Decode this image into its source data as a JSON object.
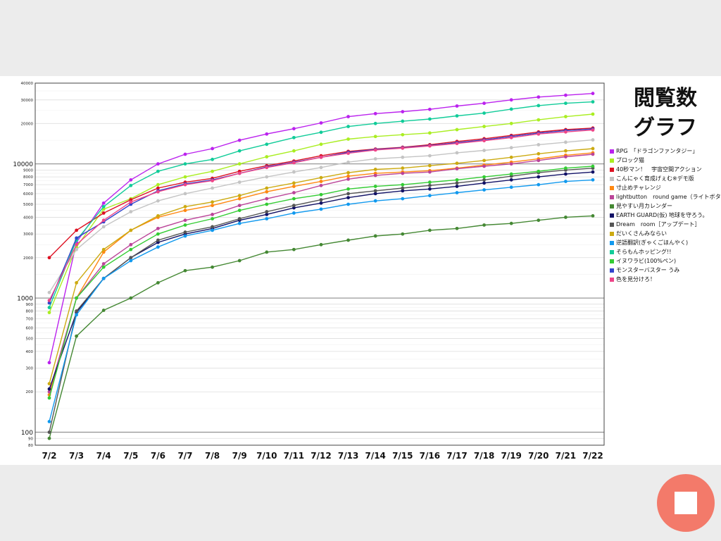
{
  "title_line1": "閲覧数",
  "title_line2": "グラフ",
  "stop_button_icon": "stop-icon",
  "chart_data": {
    "type": "line",
    "yscale": "log",
    "ylim": [
      80,
      40000
    ],
    "grid": true,
    "legend_position": "right",
    "xlabel": "",
    "ylabel": "",
    "categories": [
      "7/2",
      "7/3",
      "7/4",
      "7/5",
      "7/6",
      "7/7",
      "7/8",
      "7/9",
      "7/10",
      "7/11",
      "7/12",
      "7/13",
      "7/14",
      "7/15",
      "7/16",
      "7/17",
      "7/18",
      "7/19",
      "7/20",
      "7/21",
      "7/22"
    ],
    "y_major_ticks": [
      {
        "v": 100,
        "l": "100"
      },
      {
        "v": 1000,
        "l": "1000"
      },
      {
        "v": 10000,
        "l": "10000"
      }
    ],
    "y_minor_ticks": [
      {
        "v": 80,
        "l": "80"
      },
      {
        "v": 90,
        "l": "90"
      },
      {
        "v": 200,
        "l": "200"
      },
      {
        "v": 300,
        "l": "300"
      },
      {
        "v": 400,
        "l": "400"
      },
      {
        "v": 500,
        "l": "500"
      },
      {
        "v": 600,
        "l": "600"
      },
      {
        "v": 700,
        "l": "700"
      },
      {
        "v": 800,
        "l": "800"
      },
      {
        "v": 900,
        "l": "900"
      },
      {
        "v": 2000,
        "l": "2000"
      },
      {
        "v": 3000,
        "l": "3000"
      },
      {
        "v": 4000,
        "l": "4000"
      },
      {
        "v": 5000,
        "l": "5000"
      },
      {
        "v": 6000,
        "l": "6000"
      },
      {
        "v": 7000,
        "l": "7000"
      },
      {
        "v": 8000,
        "l": "8000"
      },
      {
        "v": 9000,
        "l": "9000"
      },
      {
        "v": 20000,
        "l": "20000"
      },
      {
        "v": 30000,
        "l": "30000"
      },
      {
        "v": 40000,
        "l": "40000"
      }
    ],
    "series": [
      {
        "name": "RPG　「ドラゴンファンタジー」",
        "color": "#bb22ee",
        "values": [
          330,
          2600,
          5100,
          7600,
          10000,
          11800,
          13000,
          15000,
          16700,
          18300,
          20200,
          22500,
          23700,
          24500,
          25500,
          27000,
          28300,
          30000,
          31500,
          32500,
          33500
        ]
      },
      {
        "name": "ブロック猫",
        "color": "#aaee22",
        "values": [
          780,
          2400,
          4600,
          5500,
          7000,
          8000,
          8800,
          10000,
          11300,
          12500,
          14000,
          15300,
          16000,
          16500,
          17000,
          18000,
          19000,
          20000,
          21300,
          22500,
          23500
        ]
      },
      {
        "name": "40秒マン！　宇宙空間アクション",
        "color": "#dd1122",
        "values": [
          2000,
          3200,
          4300,
          5400,
          6600,
          7300,
          7800,
          8800,
          9700,
          10500,
          11500,
          12400,
          12900,
          13300,
          13900,
          14700,
          15400,
          16300,
          17300,
          18000,
          18500
        ]
      },
      {
        "name": "こんにゃく育成げぇむ※デモ版",
        "color": "#c4c4c4",
        "values": [
          1100,
          2300,
          3400,
          4400,
          5300,
          6000,
          6600,
          7300,
          8000,
          8700,
          9400,
          10300,
          10900,
          11200,
          11500,
          12100,
          12600,
          13200,
          13900,
          14500,
          15100
        ]
      },
      {
        "name": "寸止めチャレンジ",
        "color": "#ff8811",
        "values": [
          190,
          1000,
          2200,
          3200,
          4000,
          4500,
          4900,
          5500,
          6200,
          6800,
          7400,
          8100,
          8500,
          8700,
          8900,
          9300,
          9800,
          10300,
          10900,
          11600,
          12100
        ]
      },
      {
        "name": "lightbutton　round game（ライトボタン）",
        "color": "#bb4499",
        "values": [
          200,
          1000,
          1800,
          2500,
          3300,
          3800,
          4200,
          4900,
          5500,
          6100,
          6900,
          7700,
          8200,
          8500,
          8700,
          9200,
          9600,
          10000,
          10600,
          11300,
          11800
        ]
      },
      {
        "name": "見やすい月カレンダー",
        "color": "#448833",
        "values": [
          90,
          520,
          810,
          1000,
          1300,
          1600,
          1700,
          1900,
          2200,
          2300,
          2500,
          2700,
          2900,
          3000,
          3200,
          3300,
          3500,
          3600,
          3800,
          4000,
          4100
        ]
      },
      {
        "name": "EARTH GUARD(仮) 地球を守ろう。",
        "color": "#111166",
        "values": [
          210,
          780,
          1400,
          2000,
          2600,
          3000,
          3300,
          3800,
          4200,
          4700,
          5100,
          5600,
          6000,
          6300,
          6500,
          6800,
          7200,
          7600,
          8000,
          8400,
          8700
        ]
      },
      {
        "name": "Dream　room［アップデート］",
        "color": "#555555",
        "values": [
          100,
          800,
          1400,
          2000,
          2700,
          3100,
          3400,
          3900,
          4400,
          4900,
          5400,
          6000,
          6300,
          6600,
          6900,
          7200,
          7600,
          8100,
          8600,
          9000,
          9300
        ]
      },
      {
        "name": "だいくさんみならい",
        "color": "#ccaa11",
        "values": [
          230,
          1300,
          2300,
          3200,
          4100,
          4800,
          5200,
          5800,
          6600,
          7200,
          7900,
          8600,
          9100,
          9300,
          9700,
          10100,
          10600,
          11200,
          11900,
          12500,
          13000
        ]
      },
      {
        "name": "逆語翻訳(ぎゃくごほんやく)",
        "color": "#1199ee",
        "values": [
          120,
          750,
          1400,
          1900,
          2400,
          2900,
          3200,
          3600,
          3900,
          4300,
          4600,
          5000,
          5300,
          5500,
          5800,
          6100,
          6400,
          6700,
          7000,
          7400,
          7600
        ]
      },
      {
        "name": "そらもんホッピング!!",
        "color": "#11cc99",
        "values": [
          850,
          2700,
          4800,
          6900,
          8800,
          10000,
          10800,
          12500,
          14000,
          15700,
          17200,
          19000,
          20000,
          20800,
          21600,
          22800,
          23900,
          25600,
          27200,
          28300,
          29000
        ]
      },
      {
        "name": "イヌワラビ(100%ペン)",
        "color": "#33cc33",
        "values": [
          180,
          1000,
          1700,
          2300,
          3000,
          3500,
          3900,
          4500,
          5000,
          5500,
          5900,
          6500,
          6800,
          7000,
          7300,
          7600,
          8000,
          8400,
          8800,
          9300,
          9600
        ]
      },
      {
        "name": "モンスターバスター うみ",
        "color": "#3344cc",
        "values": [
          920,
          2800,
          3700,
          5000,
          6300,
          7100,
          7600,
          8500,
          9500,
          10300,
          11200,
          12200,
          12800,
          13200,
          13700,
          14400,
          15100,
          16000,
          17000,
          17700,
          18200
        ]
      },
      {
        "name": "色を見分けろ！",
        "color": "#ee4488",
        "values": [
          960,
          2500,
          3800,
          5200,
          6200,
          7000,
          7500,
          8500,
          9400,
          10200,
          11200,
          12000,
          12700,
          13100,
          13600,
          14200,
          14900,
          15700,
          16700,
          17300,
          17900
        ]
      }
    ]
  }
}
